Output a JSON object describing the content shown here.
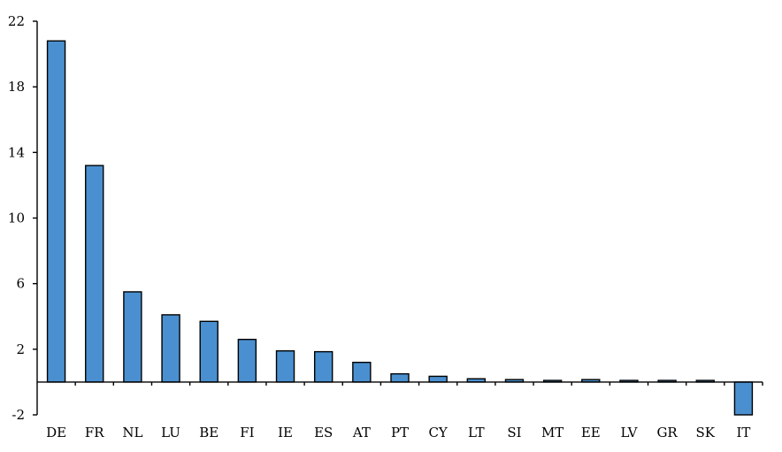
{
  "chart_data": {
    "type": "bar",
    "title": "",
    "xlabel": "",
    "ylabel": "",
    "ylim": [
      -2,
      22
    ],
    "yticks": [
      -2,
      2,
      6,
      10,
      14,
      18,
      22
    ],
    "grid": false,
    "legend": "none",
    "colors": {
      "bar": "#4a90d0",
      "outline": "#000000"
    },
    "categories": [
      "DE",
      "FR",
      "NL",
      "LU",
      "BE",
      "FI",
      "IE",
      "ES",
      "AT",
      "PT",
      "CY",
      "LT",
      "SI",
      "MT",
      "EE",
      "LV",
      "GR",
      "SK",
      "IT"
    ],
    "values": [
      20.8,
      13.2,
      5.5,
      4.1,
      3.7,
      2.6,
      1.9,
      1.85,
      1.2,
      0.5,
      0.35,
      0.2,
      0.15,
      0.1,
      0.15,
      0.1,
      0.1,
      0.1,
      -2.0
    ]
  }
}
